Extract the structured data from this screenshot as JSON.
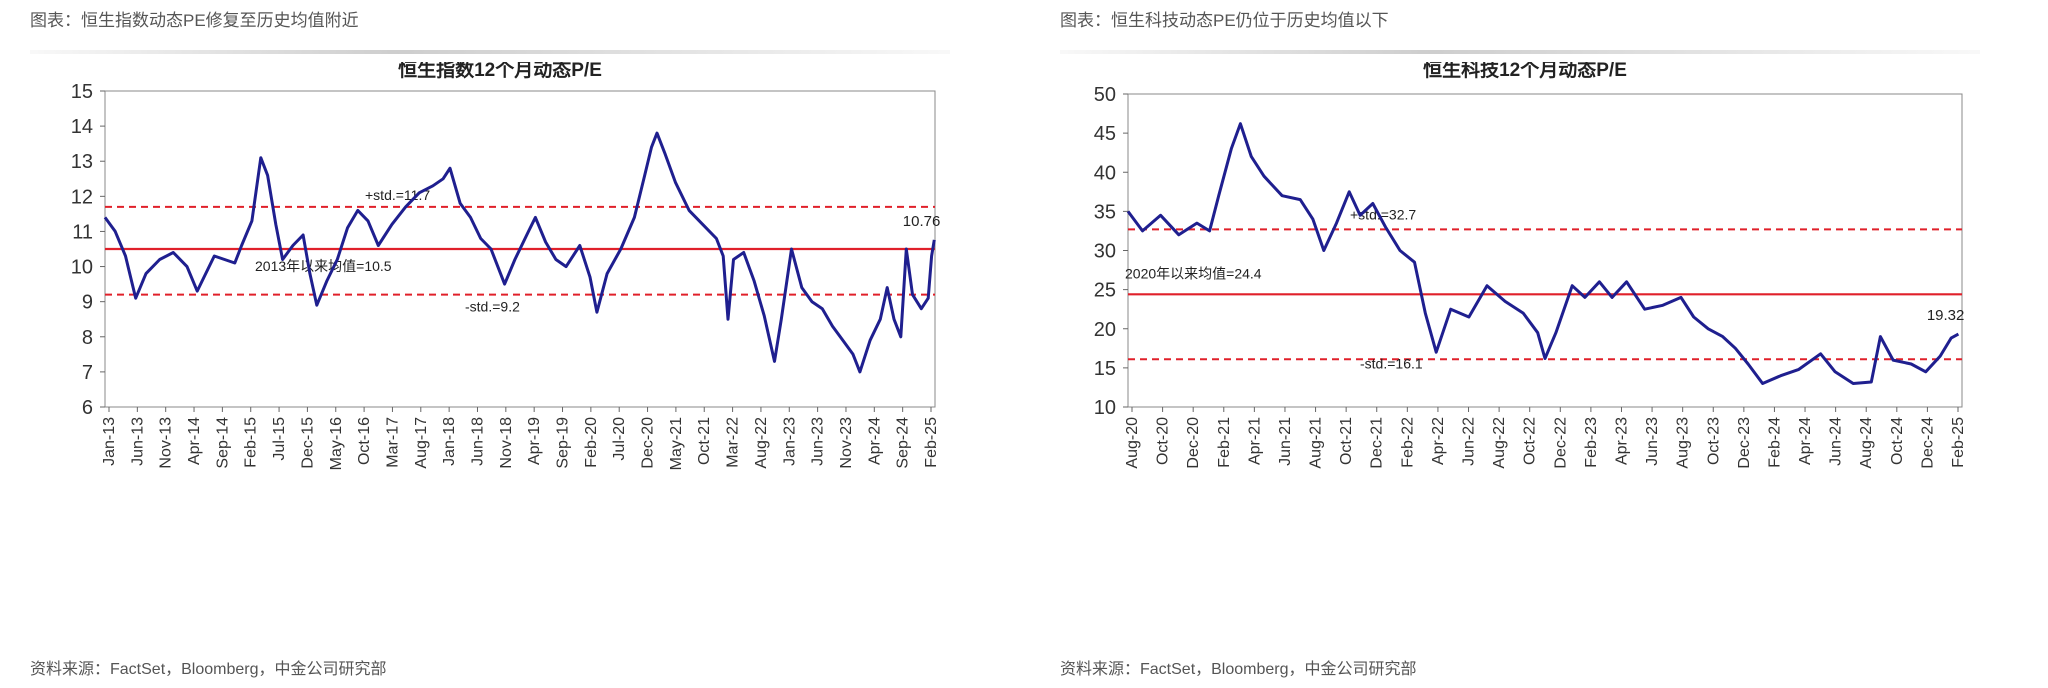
{
  "panels": [
    {
      "caption": "图表：恒生指数动态PE修复至历史均值附近",
      "source": "资料来源：FactSet，Bloomberg，中金公司研究部"
    },
    {
      "caption": "图表：恒生科技动态PE仍位于历史均值以下",
      "source": "资料来源：FactSet，Bloomberg，中金公司研究部"
    }
  ],
  "chart_data": [
    {
      "type": "line",
      "title": "恒生指数12个月动态P/E",
      "ylim": [
        6,
        15
      ],
      "yticks": [
        6,
        7,
        8,
        9,
        10,
        11,
        12,
        13,
        14,
        15
      ],
      "x_range": [
        2013.0,
        2025.15
      ],
      "x_ticks": [
        "Jan-13",
        "Jun-13",
        "Nov-13",
        "Apr-14",
        "Sep-14",
        "Feb-15",
        "Jul-15",
        "Dec-15",
        "May-16",
        "Oct-16",
        "Mar-17",
        "Aug-17",
        "Jan-18",
        "Jun-18",
        "Nov-18",
        "Apr-19",
        "Sep-19",
        "Feb-20",
        "Jul-20",
        "Dec-20",
        "May-21",
        "Oct-21",
        "Mar-22",
        "Aug-22",
        "Jan-23",
        "Jun-23",
        "Nov-23",
        "Apr-24",
        "Sep-24",
        "Feb-25"
      ],
      "series": [
        {
          "color": "#1f1f8f",
          "points": [
            [
              2013.0,
              11.4
            ],
            [
              2013.15,
              11.0
            ],
            [
              2013.3,
              10.3
            ],
            [
              2013.45,
              9.1
            ],
            [
              2013.6,
              9.8
            ],
            [
              2013.8,
              10.2
            ],
            [
              2014.0,
              10.4
            ],
            [
              2014.2,
              10.0
            ],
            [
              2014.35,
              9.3
            ],
            [
              2014.6,
              10.3
            ],
            [
              2014.9,
              10.1
            ],
            [
              2015.0,
              10.6
            ],
            [
              2015.15,
              11.3
            ],
            [
              2015.28,
              13.1
            ],
            [
              2015.38,
              12.6
            ],
            [
              2015.5,
              11.2
            ],
            [
              2015.6,
              10.2
            ],
            [
              2015.75,
              10.6
            ],
            [
              2015.9,
              10.9
            ],
            [
              2016.0,
              9.8
            ],
            [
              2016.1,
              8.9
            ],
            [
              2016.25,
              9.6
            ],
            [
              2016.4,
              10.2
            ],
            [
              2016.55,
              11.1
            ],
            [
              2016.7,
              11.6
            ],
            [
              2016.85,
              11.3
            ],
            [
              2017.0,
              10.6
            ],
            [
              2017.2,
              11.2
            ],
            [
              2017.4,
              11.7
            ],
            [
              2017.6,
              12.1
            ],
            [
              2017.8,
              12.3
            ],
            [
              2017.95,
              12.5
            ],
            [
              2018.05,
              12.8
            ],
            [
              2018.2,
              11.8
            ],
            [
              2018.35,
              11.4
            ],
            [
              2018.5,
              10.8
            ],
            [
              2018.65,
              10.5
            ],
            [
              2018.85,
              9.5
            ],
            [
              2019.0,
              10.2
            ],
            [
              2019.2,
              11.0
            ],
            [
              2019.3,
              11.4
            ],
            [
              2019.45,
              10.7
            ],
            [
              2019.6,
              10.2
            ],
            [
              2019.75,
              10.0
            ],
            [
              2019.95,
              10.6
            ],
            [
              2020.1,
              9.7
            ],
            [
              2020.2,
              8.7
            ],
            [
              2020.35,
              9.8
            ],
            [
              2020.55,
              10.5
            ],
            [
              2020.75,
              11.4
            ],
            [
              2020.9,
              12.6
            ],
            [
              2021.0,
              13.4
            ],
            [
              2021.08,
              13.8
            ],
            [
              2021.2,
              13.2
            ],
            [
              2021.35,
              12.4
            ],
            [
              2021.55,
              11.6
            ],
            [
              2021.75,
              11.2
            ],
            [
              2021.95,
              10.8
            ],
            [
              2022.05,
              10.3
            ],
            [
              2022.12,
              8.5
            ],
            [
              2022.2,
              10.2
            ],
            [
              2022.35,
              10.4
            ],
            [
              2022.5,
              9.6
            ],
            [
              2022.65,
              8.6
            ],
            [
              2022.8,
              7.3
            ],
            [
              2022.9,
              8.5
            ],
            [
              2023.05,
              10.5
            ],
            [
              2023.2,
              9.4
            ],
            [
              2023.35,
              9.0
            ],
            [
              2023.5,
              8.8
            ],
            [
              2023.65,
              8.3
            ],
            [
              2023.8,
              7.9
            ],
            [
              2023.95,
              7.5
            ],
            [
              2024.05,
              7.0
            ],
            [
              2024.2,
              7.9
            ],
            [
              2024.35,
              8.5
            ],
            [
              2024.45,
              9.4
            ],
            [
              2024.55,
              8.5
            ],
            [
              2024.65,
              8.0
            ],
            [
              2024.73,
              10.5
            ],
            [
              2024.82,
              9.2
            ],
            [
              2024.95,
              8.8
            ],
            [
              2025.05,
              9.1
            ],
            [
              2025.1,
              10.3
            ],
            [
              2025.14,
              10.76
            ]
          ]
        }
      ],
      "hlines": [
        {
          "value": 11.7,
          "style": "dashed",
          "label": "+std.=11.7"
        },
        {
          "value": 10.5,
          "style": "solid",
          "label": "2013年以来均值=10.5"
        },
        {
          "value": 9.2,
          "style": "dashed",
          "label": "-std.=9.2"
        }
      ],
      "end_label": "10.76"
    },
    {
      "type": "line",
      "title": "恒生科技12个月动态P/E",
      "ylim": [
        10,
        50
      ],
      "yticks": [
        10,
        15,
        20,
        25,
        30,
        35,
        40,
        45,
        50
      ],
      "x_range": [
        2020.6,
        2025.2
      ],
      "x_ticks": [
        "Aug-20",
        "Oct-20",
        "Dec-20",
        "Feb-21",
        "Apr-21",
        "Jun-21",
        "Aug-21",
        "Oct-21",
        "Dec-21",
        "Feb-22",
        "Apr-22",
        "Jun-22",
        "Aug-22",
        "Oct-22",
        "Dec-22",
        "Feb-23",
        "Apr-23",
        "Jun-23",
        "Aug-23",
        "Oct-23",
        "Dec-23",
        "Feb-24",
        "Apr-24",
        "Jun-24",
        "Aug-24",
        "Oct-24",
        "Dec-24",
        "Feb-25"
      ],
      "series": [
        {
          "color": "#1f1f8f",
          "points": [
            [
              2020.6,
              35.0
            ],
            [
              2020.68,
              32.5
            ],
            [
              2020.78,
              34.5
            ],
            [
              2020.88,
              32.0
            ],
            [
              2020.98,
              33.5
            ],
            [
              2021.05,
              32.5
            ],
            [
              2021.1,
              37.0
            ],
            [
              2021.17,
              43.0
            ],
            [
              2021.22,
              46.2
            ],
            [
              2021.28,
              42.0
            ],
            [
              2021.35,
              39.5
            ],
            [
              2021.45,
              37.0
            ],
            [
              2021.55,
              36.5
            ],
            [
              2021.62,
              34.0
            ],
            [
              2021.68,
              30.0
            ],
            [
              2021.75,
              33.5
            ],
            [
              2021.82,
              37.5
            ],
            [
              2021.88,
              34.5
            ],
            [
              2021.95,
              36.0
            ],
            [
              2022.02,
              33.0
            ],
            [
              2022.1,
              30.0
            ],
            [
              2022.18,
              28.5
            ],
            [
              2022.24,
              22.0
            ],
            [
              2022.3,
              17.0
            ],
            [
              2022.38,
              22.5
            ],
            [
              2022.48,
              21.5
            ],
            [
              2022.58,
              25.5
            ],
            [
              2022.68,
              23.5
            ],
            [
              2022.78,
              22.0
            ],
            [
              2022.86,
              19.5
            ],
            [
              2022.9,
              16.2
            ],
            [
              2022.96,
              19.5
            ],
            [
              2023.05,
              25.5
            ],
            [
              2023.12,
              24.0
            ],
            [
              2023.2,
              26.0
            ],
            [
              2023.27,
              24.0
            ],
            [
              2023.35,
              26.0
            ],
            [
              2023.45,
              22.5
            ],
            [
              2023.55,
              23.0
            ],
            [
              2023.65,
              24.0
            ],
            [
              2023.72,
              21.5
            ],
            [
              2023.8,
              20.0
            ],
            [
              2023.88,
              19.0
            ],
            [
              2023.95,
              17.5
            ],
            [
              2024.02,
              15.5
            ],
            [
              2024.1,
              13.0
            ],
            [
              2024.2,
              14.0
            ],
            [
              2024.3,
              14.8
            ],
            [
              2024.42,
              16.8
            ],
            [
              2024.5,
              14.5
            ],
            [
              2024.6,
              13.0
            ],
            [
              2024.7,
              13.2
            ],
            [
              2024.75,
              19.0
            ],
            [
              2024.82,
              16.0
            ],
            [
              2024.92,
              15.5
            ],
            [
              2025.0,
              14.5
            ],
            [
              2025.08,
              16.5
            ],
            [
              2025.14,
              18.8
            ],
            [
              2025.18,
              19.32
            ]
          ]
        }
      ],
      "hlines": [
        {
          "value": 32.7,
          "style": "dashed",
          "label": "+std.=32.7"
        },
        {
          "value": 24.4,
          "style": "solid",
          "label": "2020年以来均值=24.4"
        },
        {
          "value": 16.1,
          "style": "dashed",
          "label": "-std.=16.1"
        }
      ],
      "end_label": "19.32"
    }
  ]
}
